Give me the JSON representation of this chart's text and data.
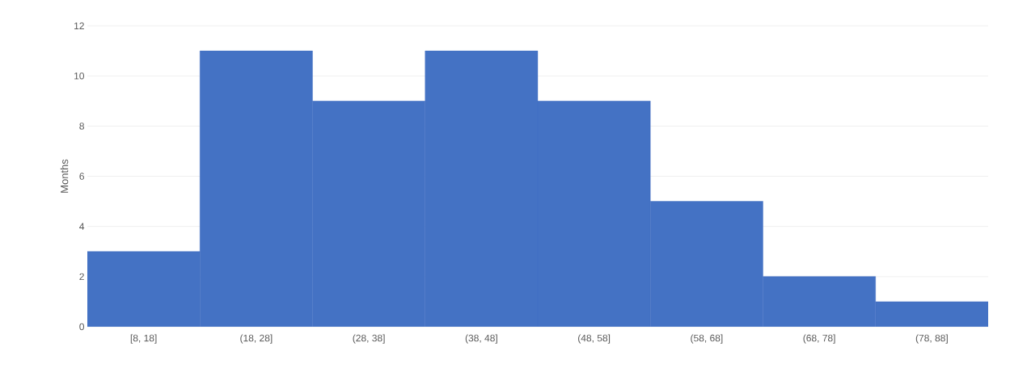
{
  "chart_data": {
    "type": "bar",
    "ylabel": "Months",
    "categories": [
      "[8, 18]",
      "(18, 28]",
      "(28, 38]",
      "(38, 48]",
      "(48, 58]",
      "(58, 68]",
      "(68, 78]",
      "(78, 88]"
    ],
    "values": [
      3,
      11,
      9,
      11,
      9,
      5,
      2,
      1
    ],
    "color": "#4472c4",
    "ylim": [
      0,
      12
    ],
    "yticks": [
      0,
      2,
      4,
      6,
      8,
      10,
      12
    ],
    "grid": "y"
  }
}
